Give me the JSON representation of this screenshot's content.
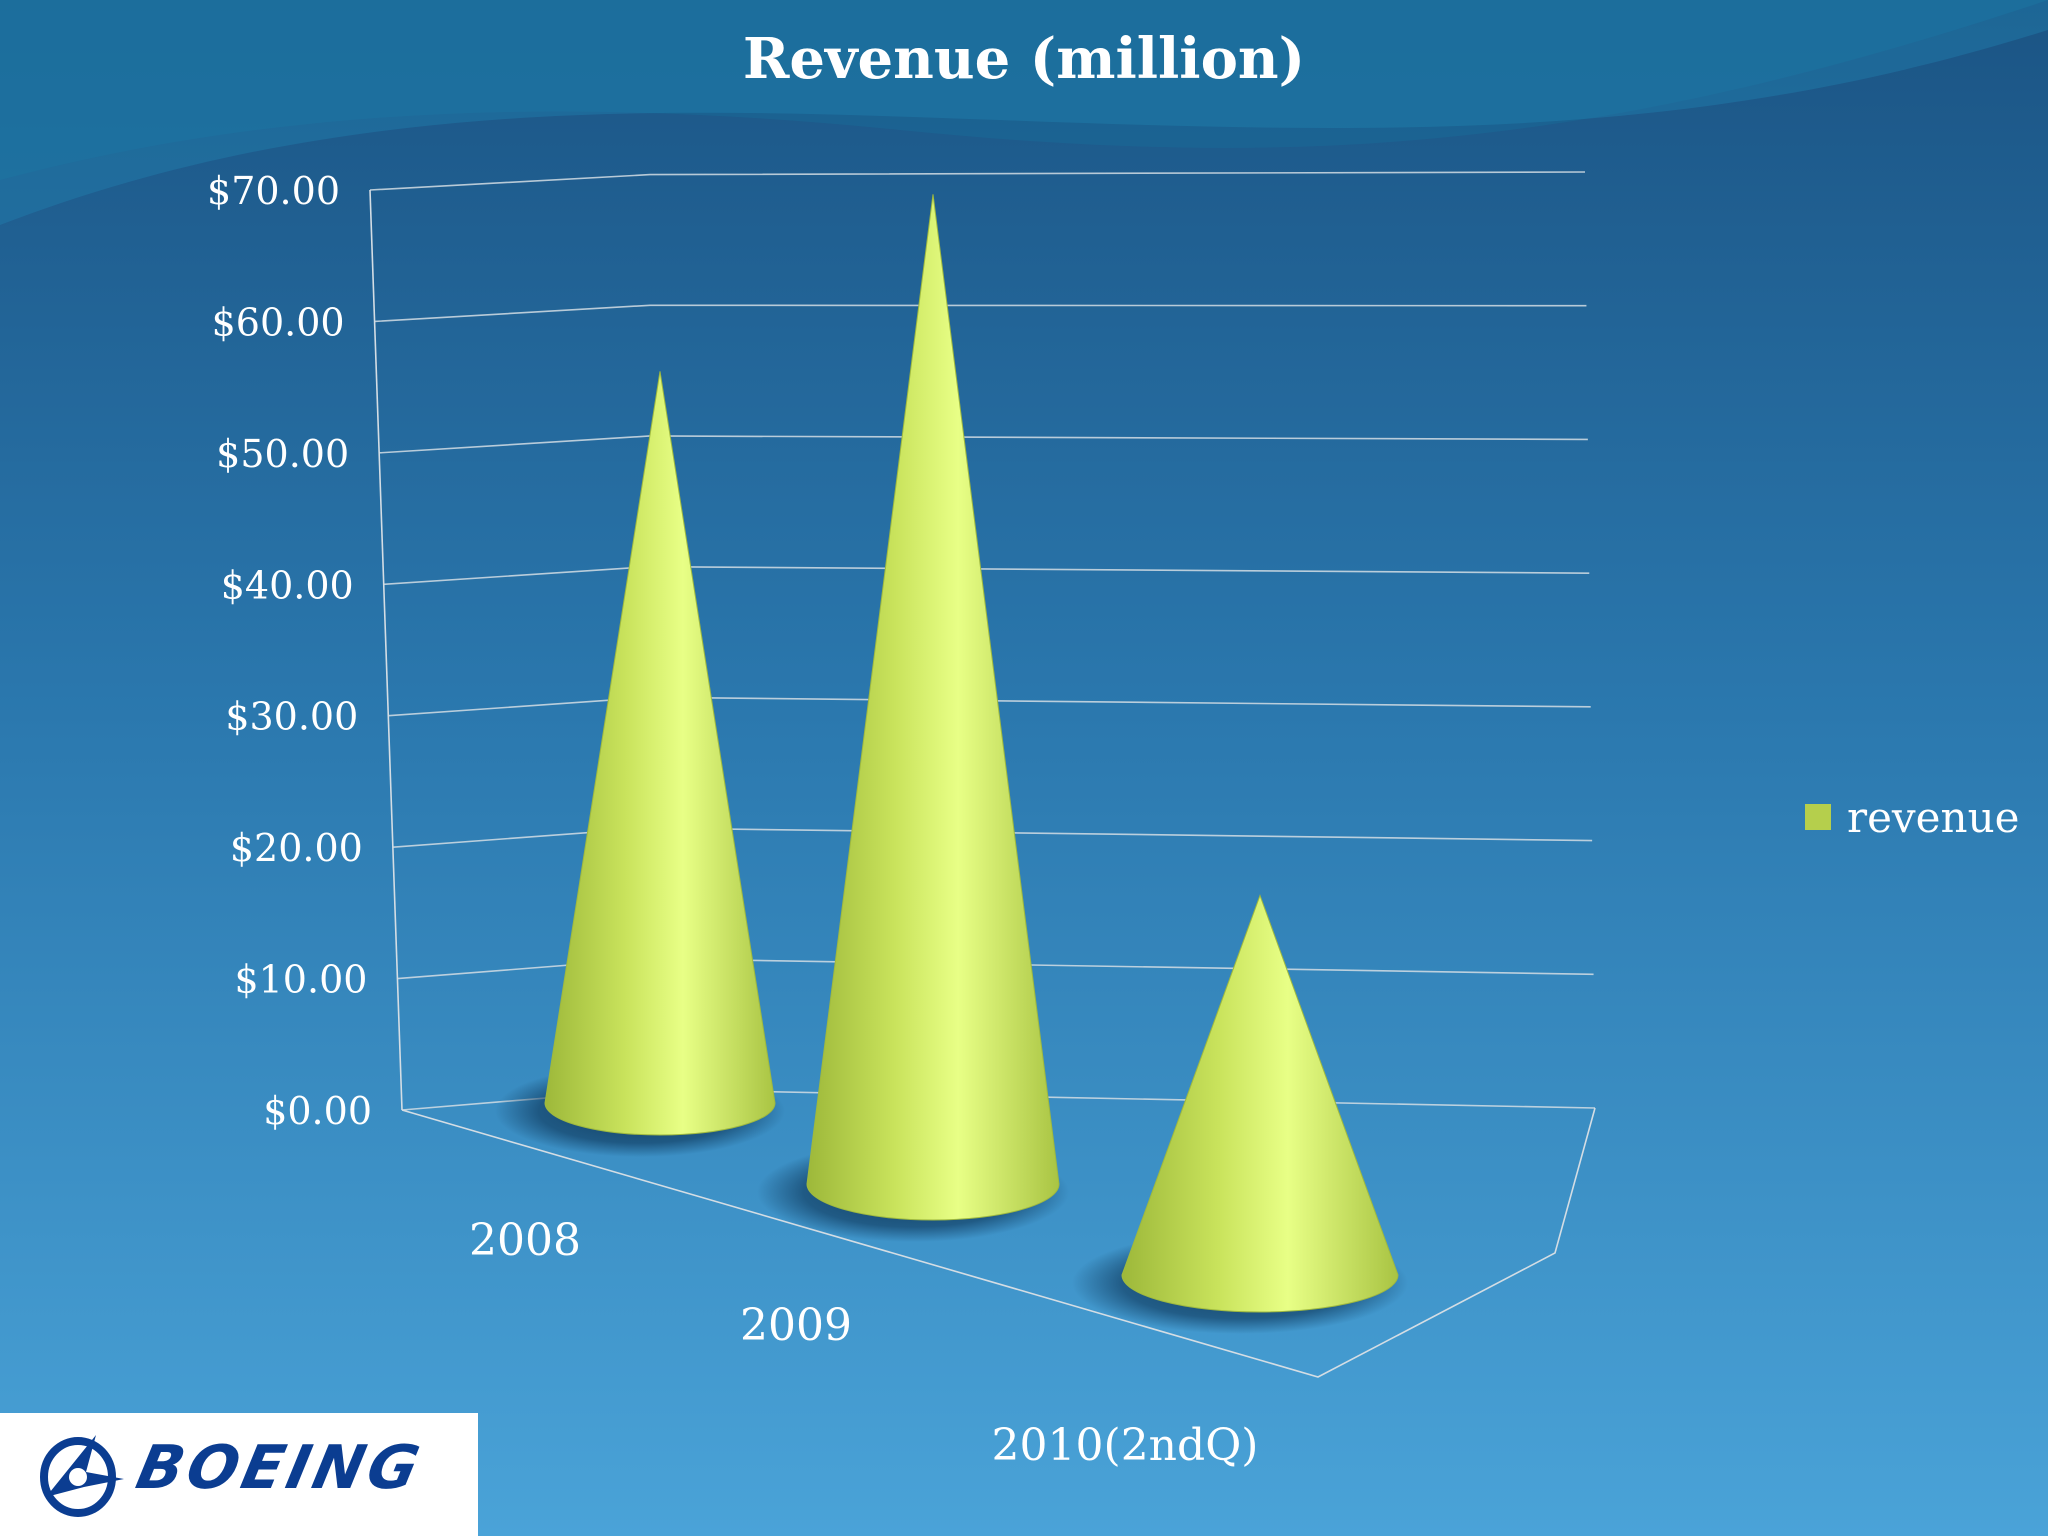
{
  "chart_data": {
    "type": "bar",
    "title": "Revenue (million)",
    "categories": [
      "2008",
      "2009",
      "2010(2ndQ)"
    ],
    "series": [
      {
        "name": "revenue",
        "values": [
          58,
          67,
          23
        ]
      }
    ],
    "ylim": [
      0,
      70
    ],
    "yticks": [
      "$0.00",
      "$10.00",
      "$20.00",
      "$30.00",
      "$40.00",
      "$50.00",
      "$60.00",
      "$70.00"
    ],
    "grid": true,
    "legend_position": "right",
    "bar_shape": "cone",
    "colors": {
      "series": "#b5cf4c",
      "series_highlight": "#e6ff80",
      "background_top": "#1d5f8e",
      "background_bottom": "#4aa3d8",
      "grid": "#d4dde4"
    }
  },
  "legend": {
    "label": "revenue"
  },
  "logo": {
    "name": "boeing-logo",
    "text": "BOEING"
  }
}
